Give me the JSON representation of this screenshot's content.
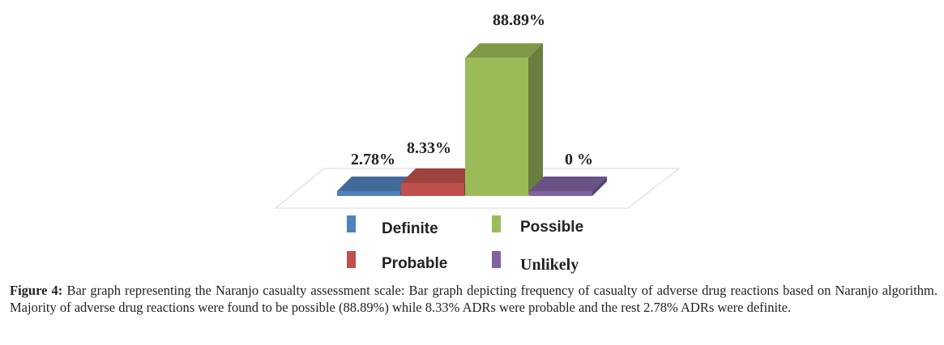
{
  "chart_data": {
    "type": "bar",
    "categories": [
      "Definite",
      "Probable",
      "Possible",
      "Unlikely"
    ],
    "values": [
      2.78,
      8.33,
      88.89,
      0
    ],
    "value_labels": [
      "2.78%",
      "8.33%",
      "88.89%",
      "0 %"
    ],
    "colors": [
      "#4f81bd",
      "#c0504d",
      "#9bbb59",
      "#8064a2"
    ],
    "title": "",
    "xlabel": "",
    "ylabel": "",
    "ylim": [
      0,
      100
    ],
    "grid": false,
    "legend_position": "bottom",
    "three_d": true
  },
  "legend": {
    "items": [
      {
        "label": "Definite",
        "color": "#4f81bd"
      },
      {
        "label": "Possible",
        "color": "#9bbb59"
      },
      {
        "label": "Probable",
        "color": "#c0504d"
      },
      {
        "label": "Unlikely",
        "color": "#8064a2"
      }
    ]
  },
  "caption": {
    "label": "Figure 4:",
    "text": "Bar graph representing the Naranjo casualty assessment scale: Bar graph depicting frequency of casualty of adverse drug reactions based on Naranjo algorithm. Majority of adverse drug reactions were found to be possible (88.89%) while 8.33% ADRs were probable and the rest 2.78% ADRs were definite."
  }
}
